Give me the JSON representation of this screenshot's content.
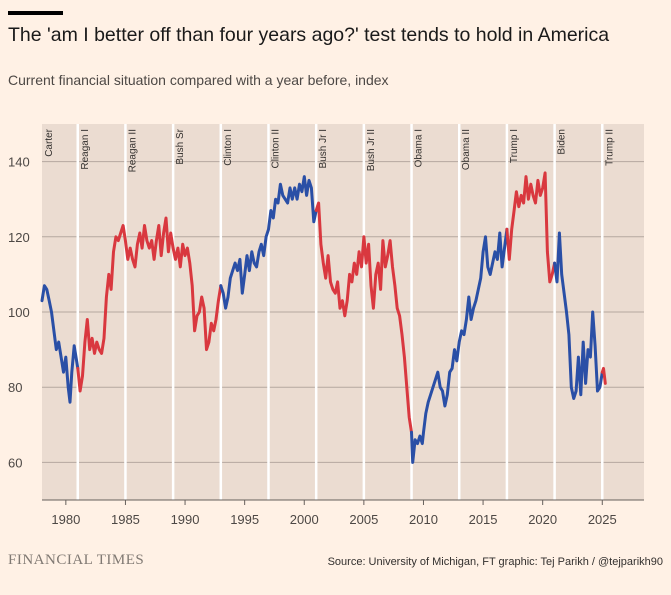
{
  "title": "The 'am I better off than four years ago?' test tends to hold in America",
  "subtitle": "Current financial situation compared with a year before, index",
  "source": "Source: University of Michigan, FT graphic: Tej Parikh / @tejparikh90",
  "brand": "FINANCIAL TIMES",
  "colors": {
    "background": "#fff1e5",
    "plot_background": "#ebdcd1",
    "democrat": "#2a4fa6",
    "republican": "#d9383f",
    "gridline": "#b5a89f",
    "divider": "#ffffff"
  },
  "chart_data": {
    "type": "line",
    "title": "The 'am I better off than four years ago?' test tends to hold in America",
    "subtitle": "Current financial situation compared with a year before, index",
    "xlim": [
      1978.0,
      2028.5
    ],
    "ylim": [
      50,
      150
    ],
    "xticks": [
      1980,
      1985,
      1990,
      1995,
      2000,
      2005,
      2010,
      2015,
      2020,
      2025
    ],
    "x_tick_labels": [
      "1980",
      "1985",
      "1990",
      "1995",
      "2000",
      "2005",
      "2010",
      "2015",
      "2020",
      "2025"
    ],
    "yticks": [
      60,
      80,
      100,
      120,
      140
    ],
    "y_tick_labels": [
      "60",
      "80",
      "100",
      "120",
      "140"
    ],
    "grid": "horizontal",
    "terms": [
      {
        "label": "Carter",
        "start": 1978.0,
        "party": "D"
      },
      {
        "label": "Reagan I",
        "start": 1981.0,
        "party": "R"
      },
      {
        "label": "Reagan II",
        "start": 1985.0,
        "party": "R"
      },
      {
        "label": "Bush Sr",
        "start": 1989.0,
        "party": "R"
      },
      {
        "label": "Clinton I",
        "start": 1993.0,
        "party": "D"
      },
      {
        "label": "Clinton II",
        "start": 1997.0,
        "party": "D"
      },
      {
        "label": "Bush Jr I",
        "start": 2001.0,
        "party": "R"
      },
      {
        "label": "Bush Jr II",
        "start": 2005.0,
        "party": "R"
      },
      {
        "label": "Obama I",
        "start": 2009.0,
        "party": "D"
      },
      {
        "label": "Obama II",
        "start": 2013.0,
        "party": "D"
      },
      {
        "label": "Trump I",
        "start": 2017.0,
        "party": "R"
      },
      {
        "label": "Biden",
        "start": 2021.0,
        "party": "D"
      },
      {
        "label": "Trump II",
        "start": 2025.0,
        "party": "R"
      }
    ],
    "series": [
      {
        "party": "D",
        "points": [
          [
            1978.0,
            103
          ],
          [
            1978.2,
            107
          ],
          [
            1978.4,
            106
          ],
          [
            1978.6,
            103
          ],
          [
            1978.8,
            100
          ],
          [
            1979.0,
            95
          ],
          [
            1979.2,
            90
          ],
          [
            1979.4,
            92
          ],
          [
            1979.6,
            88
          ],
          [
            1979.8,
            84
          ],
          [
            1980.0,
            88
          ],
          [
            1980.2,
            80
          ],
          [
            1980.35,
            76
          ],
          [
            1980.5,
            84
          ],
          [
            1980.7,
            91
          ],
          [
            1980.85,
            88
          ],
          [
            1981.0,
            85
          ]
        ]
      },
      {
        "party": "R",
        "points": [
          [
            1981.0,
            85
          ],
          [
            1981.2,
            79
          ],
          [
            1981.4,
            83
          ],
          [
            1981.6,
            92
          ],
          [
            1981.8,
            98
          ],
          [
            1982.0,
            90
          ],
          [
            1982.2,
            93
          ],
          [
            1982.4,
            89
          ],
          [
            1982.6,
            92
          ],
          [
            1982.8,
            90
          ],
          [
            1983.0,
            89
          ],
          [
            1983.2,
            93
          ],
          [
            1983.4,
            104
          ],
          [
            1983.6,
            110
          ],
          [
            1983.8,
            106
          ],
          [
            1984.0,
            116
          ],
          [
            1984.2,
            120
          ],
          [
            1984.4,
            119
          ],
          [
            1984.6,
            121
          ],
          [
            1984.8,
            123
          ],
          [
            1985.0,
            119
          ],
          [
            1985.2,
            114
          ],
          [
            1985.4,
            117
          ],
          [
            1985.6,
            114
          ],
          [
            1985.8,
            112
          ],
          [
            1986.0,
            118
          ],
          [
            1986.2,
            121
          ],
          [
            1986.4,
            117
          ],
          [
            1986.6,
            123
          ],
          [
            1986.8,
            119
          ],
          [
            1987.0,
            117
          ],
          [
            1987.2,
            119
          ],
          [
            1987.4,
            114
          ],
          [
            1987.6,
            119
          ],
          [
            1987.8,
            123
          ],
          [
            1988.0,
            115
          ],
          [
            1988.2,
            121
          ],
          [
            1988.4,
            125
          ],
          [
            1988.6,
            116
          ],
          [
            1988.8,
            121
          ],
          [
            1989.0,
            117
          ],
          [
            1989.2,
            114
          ],
          [
            1989.4,
            117
          ],
          [
            1989.6,
            112
          ],
          [
            1989.8,
            118
          ],
          [
            1990.0,
            115
          ],
          [
            1990.2,
            117
          ],
          [
            1990.4,
            113
          ],
          [
            1990.6,
            107
          ],
          [
            1990.8,
            95
          ],
          [
            1991.0,
            99
          ],
          [
            1991.2,
            100
          ],
          [
            1991.4,
            104
          ],
          [
            1991.6,
            101
          ],
          [
            1991.8,
            90
          ],
          [
            1992.0,
            92
          ],
          [
            1992.2,
            97
          ],
          [
            1992.4,
            95
          ],
          [
            1992.6,
            98
          ],
          [
            1992.8,
            103
          ],
          [
            1993.0,
            107
          ]
        ]
      },
      {
        "party": "D",
        "points": [
          [
            1993.0,
            107
          ],
          [
            1993.2,
            105
          ],
          [
            1993.4,
            101
          ],
          [
            1993.6,
            104
          ],
          [
            1993.8,
            109
          ],
          [
            1994.0,
            111
          ],
          [
            1994.2,
            113
          ],
          [
            1994.4,
            111
          ],
          [
            1994.6,
            114
          ],
          [
            1994.8,
            105
          ],
          [
            1995.0,
            110
          ],
          [
            1995.2,
            115
          ],
          [
            1995.4,
            111
          ],
          [
            1995.6,
            116
          ],
          [
            1995.8,
            113
          ],
          [
            1996.0,
            112
          ],
          [
            1996.2,
            116
          ],
          [
            1996.4,
            118
          ],
          [
            1996.6,
            115
          ],
          [
            1996.8,
            120
          ],
          [
            1997.0,
            122
          ],
          [
            1997.2,
            127
          ],
          [
            1997.4,
            125
          ],
          [
            1997.6,
            130
          ],
          [
            1997.8,
            129
          ],
          [
            1998.0,
            134
          ],
          [
            1998.2,
            131
          ],
          [
            1998.4,
            130
          ],
          [
            1998.6,
            129
          ],
          [
            1998.8,
            133
          ],
          [
            1999.0,
            130
          ],
          [
            1999.2,
            133
          ],
          [
            1999.4,
            130
          ],
          [
            1999.6,
            134
          ],
          [
            1999.8,
            132
          ],
          [
            2000.0,
            136
          ],
          [
            2000.2,
            131
          ],
          [
            2000.4,
            135
          ],
          [
            2000.6,
            133
          ],
          [
            2000.8,
            124
          ],
          [
            2001.0,
            127
          ]
        ]
      },
      {
        "party": "R",
        "points": [
          [
            2001.0,
            127
          ],
          [
            2001.2,
            129
          ],
          [
            2001.4,
            118
          ],
          [
            2001.6,
            113
          ],
          [
            2001.8,
            109
          ],
          [
            2002.0,
            115
          ],
          [
            2002.2,
            108
          ],
          [
            2002.4,
            106
          ],
          [
            2002.6,
            105
          ],
          [
            2002.8,
            108
          ],
          [
            2003.0,
            101
          ],
          [
            2003.2,
            103
          ],
          [
            2003.4,
            99
          ],
          [
            2003.6,
            103
          ],
          [
            2003.8,
            110
          ],
          [
            2004.0,
            108
          ],
          [
            2004.2,
            113
          ],
          [
            2004.4,
            110
          ],
          [
            2004.6,
            116
          ],
          [
            2004.8,
            112
          ],
          [
            2005.0,
            120
          ],
          [
            2005.2,
            113
          ],
          [
            2005.4,
            118
          ],
          [
            2005.6,
            107
          ],
          [
            2005.8,
            101
          ],
          [
            2006.0,
            110
          ],
          [
            2006.2,
            113
          ],
          [
            2006.4,
            106
          ],
          [
            2006.6,
            119
          ],
          [
            2006.8,
            112
          ],
          [
            2007.0,
            115
          ],
          [
            2007.2,
            119
          ],
          [
            2007.4,
            112
          ],
          [
            2007.6,
            107
          ],
          [
            2007.8,
            101
          ],
          [
            2008.0,
            99
          ],
          [
            2008.2,
            94
          ],
          [
            2008.4,
            88
          ],
          [
            2008.6,
            80
          ],
          [
            2008.8,
            72
          ],
          [
            2009.0,
            68
          ]
        ]
      },
      {
        "party": "D",
        "points": [
          [
            2009.0,
            68
          ],
          [
            2009.1,
            60
          ],
          [
            2009.3,
            66
          ],
          [
            2009.5,
            65
          ],
          [
            2009.7,
            67
          ],
          [
            2009.9,
            65
          ],
          [
            2010.0,
            68
          ],
          [
            2010.2,
            73
          ],
          [
            2010.4,
            76
          ],
          [
            2010.6,
            78
          ],
          [
            2010.8,
            80
          ],
          [
            2011.0,
            82
          ],
          [
            2011.2,
            84
          ],
          [
            2011.4,
            80
          ],
          [
            2011.6,
            79
          ],
          [
            2011.8,
            75
          ],
          [
            2012.0,
            78
          ],
          [
            2012.2,
            84
          ],
          [
            2012.4,
            85
          ],
          [
            2012.6,
            90
          ],
          [
            2012.8,
            87
          ],
          [
            2013.0,
            92
          ],
          [
            2013.2,
            95
          ],
          [
            2013.4,
            94
          ],
          [
            2013.6,
            98
          ],
          [
            2013.8,
            104
          ],
          [
            2014.0,
            98
          ],
          [
            2014.2,
            101
          ],
          [
            2014.4,
            103
          ],
          [
            2014.6,
            106
          ],
          [
            2014.8,
            109
          ],
          [
            2015.0,
            116
          ],
          [
            2015.2,
            120
          ],
          [
            2015.4,
            112
          ],
          [
            2015.6,
            110
          ],
          [
            2015.8,
            113
          ],
          [
            2016.0,
            116
          ],
          [
            2016.2,
            114
          ],
          [
            2016.4,
            121
          ],
          [
            2016.6,
            112
          ],
          [
            2016.8,
            117
          ],
          [
            2017.0,
            122
          ]
        ]
      },
      {
        "party": "R",
        "points": [
          [
            2017.0,
            122
          ],
          [
            2017.2,
            114
          ],
          [
            2017.4,
            122
          ],
          [
            2017.6,
            127
          ],
          [
            2017.8,
            132
          ],
          [
            2018.0,
            128
          ],
          [
            2018.2,
            131
          ],
          [
            2018.4,
            129
          ],
          [
            2018.6,
            136
          ],
          [
            2018.8,
            130
          ],
          [
            2019.0,
            134
          ],
          [
            2019.2,
            131
          ],
          [
            2019.4,
            129
          ],
          [
            2019.6,
            135
          ],
          [
            2019.8,
            131
          ],
          [
            2020.0,
            133
          ],
          [
            2020.2,
            137
          ],
          [
            2020.4,
            116
          ],
          [
            2020.6,
            108
          ],
          [
            2020.8,
            110
          ],
          [
            2021.0,
            113
          ]
        ]
      },
      {
        "party": "D",
        "points": [
          [
            2021.0,
            113
          ],
          [
            2021.2,
            108
          ],
          [
            2021.4,
            121
          ],
          [
            2021.6,
            110
          ],
          [
            2021.8,
            105
          ],
          [
            2022.0,
            100
          ],
          [
            2022.2,
            94
          ],
          [
            2022.4,
            80
          ],
          [
            2022.6,
            77
          ],
          [
            2022.8,
            79
          ],
          [
            2023.0,
            88
          ],
          [
            2023.2,
            78
          ],
          [
            2023.4,
            92
          ],
          [
            2023.6,
            81
          ],
          [
            2023.8,
            90
          ],
          [
            2024.0,
            88
          ],
          [
            2024.2,
            100
          ],
          [
            2024.4,
            91
          ],
          [
            2024.6,
            79
          ],
          [
            2024.8,
            80
          ],
          [
            2025.0,
            84
          ]
        ]
      },
      {
        "party": "R",
        "points": [
          [
            2025.0,
            84
          ],
          [
            2025.1,
            85
          ],
          [
            2025.25,
            81
          ]
        ]
      }
    ]
  }
}
